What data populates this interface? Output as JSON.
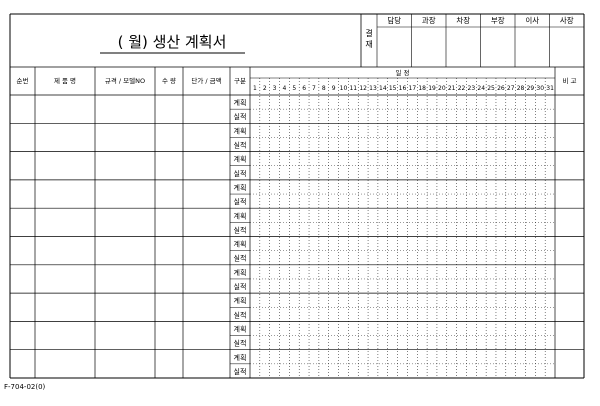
{
  "form": {
    "title": "(   월) 생산 계획서",
    "approval_label": "결재",
    "approval_roles": [
      "담당",
      "과장",
      "차장",
      "부장",
      "이사",
      "사장"
    ],
    "columns": {
      "seq": "순번",
      "product": "제 품 명",
      "spec": "규격 / 모델NO",
      "qty": "수 량",
      "price": "단가 / 금액",
      "type": "구분",
      "date": "일   정",
      "remark": "비   고"
    },
    "days": [
      "1",
      "2",
      "3",
      "4",
      "5",
      "6",
      "7",
      "8",
      "9",
      "10",
      "11",
      "12",
      "13",
      "14",
      "15",
      "16",
      "17",
      "18",
      "19",
      "20",
      "21",
      "22",
      "23",
      "24",
      "25",
      "26",
      "27",
      "28",
      "29",
      "30",
      "31"
    ],
    "row_types": [
      "계획",
      "실적"
    ],
    "row_count": 10,
    "form_code": "F-704-02(0)"
  }
}
